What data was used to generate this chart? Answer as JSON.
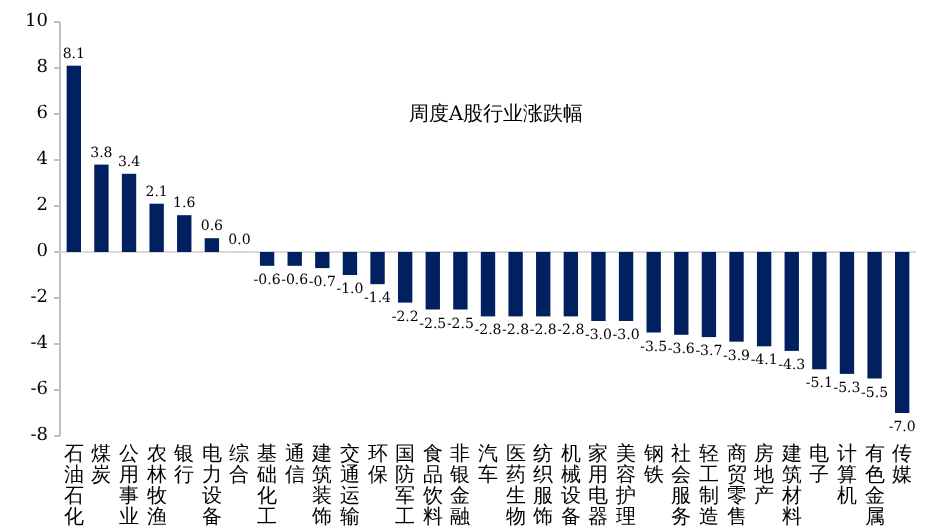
{
  "chart_data": {
    "type": "bar",
    "title": "周度A股行业涨跌幅",
    "categories": [
      "石油石化",
      "煤炭",
      "公用事业",
      "农林牧渔",
      "银行",
      "电力设备",
      "综合",
      "基础化工",
      "通信",
      "建筑装饰",
      "交通运输",
      "环保",
      "国防军工",
      "食品饮料",
      "非银金融",
      "汽车",
      "医药生物",
      "纺织服饰",
      "机械设备",
      "家用电器",
      "美容护理",
      "钢铁",
      "社会服务",
      "轻工制造",
      "商贸零售",
      "房地产",
      "建筑材料",
      "电子",
      "计算机",
      "有色金属",
      "传媒"
    ],
    "values": [
      8.1,
      3.8,
      3.4,
      2.1,
      1.6,
      0.6,
      0.0,
      -0.6,
      -0.6,
      -0.7,
      -1.0,
      -1.4,
      -2.2,
      -2.5,
      -2.5,
      -2.8,
      -2.8,
      -2.8,
      -2.8,
      -3.0,
      -3.0,
      -3.5,
      -3.6,
      -3.7,
      -3.9,
      -4.1,
      -4.3,
      -5.1,
      -5.3,
      -5.5,
      -7.0
    ],
    "value_labels": [
      "8.1",
      "3.8",
      "3.4",
      "2.1",
      "1.6",
      "0.6",
      "0.0",
      "-0.6",
      "-0.6",
      "-0.7",
      "-1.0",
      "-1.4",
      "-2.2",
      "-2.5",
      "-2.5",
      "-2.8",
      "-2.8",
      "-2.8",
      "-2.8",
      "-3.0",
      "-3.0",
      "-3.5",
      "-3.6",
      "-3.7",
      "-3.9",
      "-4.1",
      "-4.3",
      "-5.1",
      "-5.3",
      "-5.5",
      "-7.0"
    ],
    "color": "#002060",
    "ylim": [
      -8,
      10
    ],
    "yticks": [
      -8,
      -6,
      -4,
      -2,
      0,
      2,
      4,
      6,
      8,
      10
    ]
  }
}
